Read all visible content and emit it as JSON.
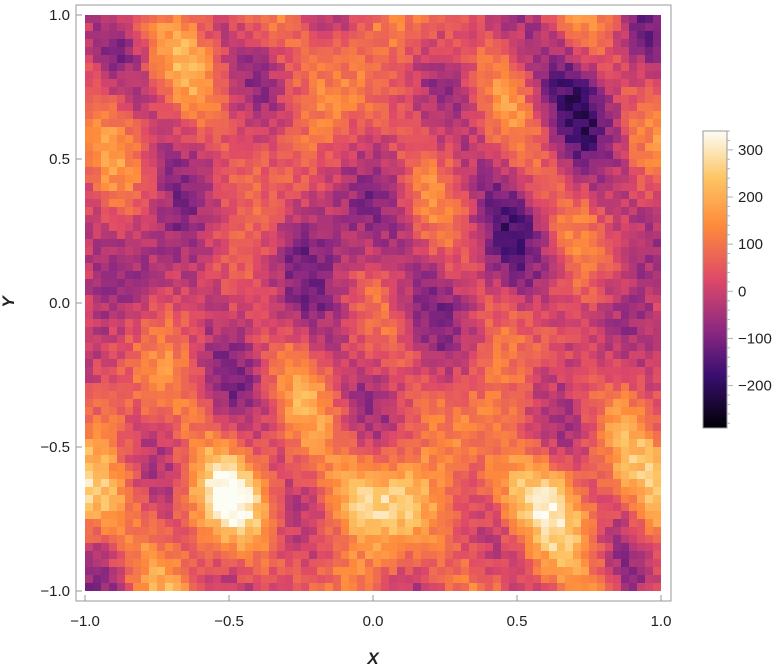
{
  "chart_data": {
    "type": "heatmap",
    "title": "",
    "xlabel": "X",
    "ylabel": "Y",
    "xlim": [
      -1.0,
      1.0
    ],
    "ylim": [
      -1.0,
      1.0
    ],
    "x_ticks": [
      "−1.0",
      "−0.5",
      "0.0",
      "0.5",
      "1.0"
    ],
    "x_tick_values": [
      -1.0,
      -0.5,
      0.0,
      0.5,
      1.0
    ],
    "y_ticks": [
      "1.0",
      "0.5",
      "0.0",
      "−0.5",
      "−1.0"
    ],
    "y_tick_values": [
      1.0,
      0.5,
      0.0,
      -0.5,
      -1.0
    ],
    "colorbar": {
      "range": [
        -290,
        340
      ],
      "ticks": [
        "300",
        "200",
        "100",
        "0",
        "−100",
        "−200"
      ],
      "tick_values": [
        300,
        200,
        100,
        0,
        -100,
        -200
      ],
      "colormap": [
        "#000004",
        "#3b0f70",
        "#8c2981",
        "#de4968",
        "#fe9f6d",
        "#fcfdbf"
      ]
    },
    "grid": false,
    "legend": "none",
    "field_description_values": {
      "low_region": "dark purple blobs concentrated in the central band (Y between -0.3 and 0.6)",
      "high_region": "bright yellow-white band near Y = -0.6 to -0.8"
    }
  }
}
